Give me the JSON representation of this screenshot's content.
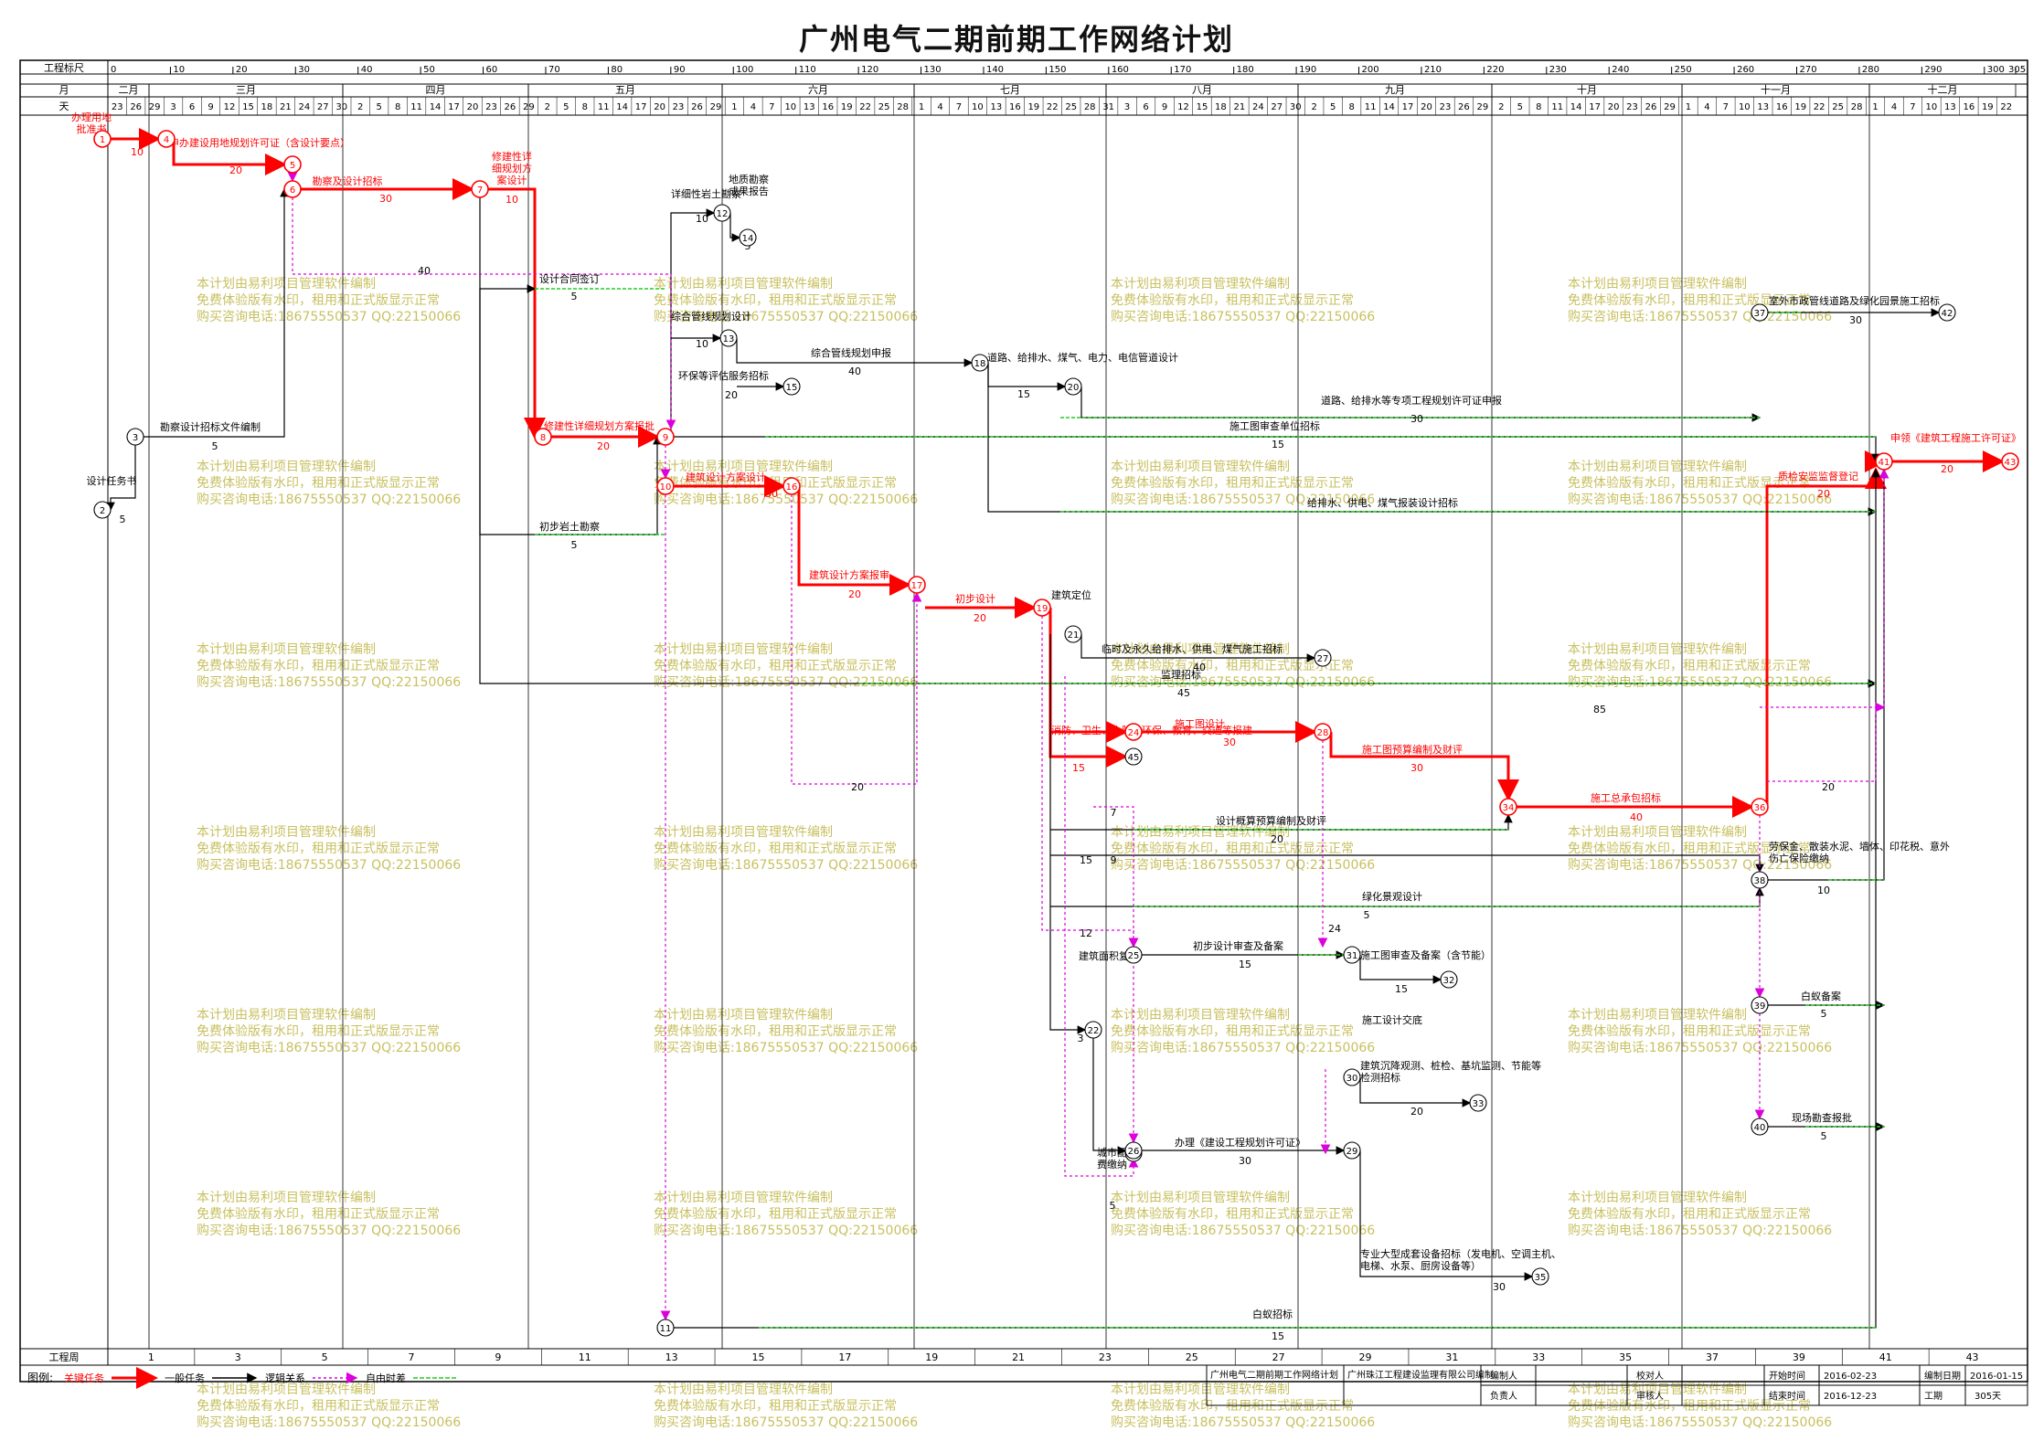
{
  "title": "广州电气二期前期工作网络计划",
  "header": {
    "row_labels": [
      "工程标尺",
      "月",
      "天"
    ],
    "scale_ticks": [
      "0",
      "10",
      "20",
      "30",
      "40",
      "50",
      "60",
      "70",
      "80",
      "90",
      "100",
      "110",
      "120",
      "130",
      "140",
      "150",
      "160",
      "170",
      "180",
      "190",
      "200",
      "210",
      "220",
      "230",
      "240",
      "250",
      "260",
      "270",
      "280",
      "290",
      "300",
      "305"
    ],
    "months": [
      "二月",
      "三月",
      "四月",
      "五月",
      "六月",
      "七月",
      "八月",
      "九月",
      "十月",
      "十一月",
      "十二月"
    ],
    "days": [
      "23",
      "26",
      "29",
      "3",
      "6",
      "9",
      "12",
      "15",
      "18",
      "21",
      "24",
      "27",
      "30",
      "2",
      "5",
      "8",
      "11",
      "14",
      "17",
      "20",
      "23",
      "26",
      "29",
      "2",
      "5",
      "8",
      "11",
      "14",
      "17",
      "20",
      "23",
      "26",
      "29",
      "1",
      "4",
      "7",
      "10",
      "13",
      "16",
      "19",
      "22",
      "25",
      "28",
      "1",
      "4",
      "7",
      "10",
      "13",
      "16",
      "19",
      "22",
      "25",
      "28",
      "31",
      "3",
      "6",
      "9",
      "12",
      "15",
      "18",
      "21",
      "24",
      "27",
      "30",
      "2",
      "5",
      "8",
      "11",
      "14",
      "17",
      "20",
      "23",
      "26",
      "29",
      "2",
      "5",
      "8",
      "11",
      "14",
      "17",
      "20",
      "23",
      "26",
      "29",
      "1",
      "4",
      "7",
      "10",
      "13",
      "16",
      "19",
      "22",
      "25",
      "28",
      "1",
      "4",
      "7",
      "10",
      "13",
      "16",
      "19",
      "22"
    ]
  },
  "footer": {
    "week_label": "工程周",
    "weeks": [
      "1",
      "3",
      "5",
      "7",
      "9",
      "11",
      "13",
      "15",
      "17",
      "19",
      "21",
      "23",
      "25",
      "27",
      "29",
      "31",
      "33",
      "35",
      "37",
      "39",
      "41",
      "43"
    ]
  },
  "legend": {
    "label": "图例:",
    "items": [
      "关键任务",
      "一般任务",
      "逻辑关系",
      "自由时差"
    ]
  },
  "info": {
    "project_name": "广州电气二期前期工作网络计划",
    "company": "广州珠江工程建设监理有限公司编制",
    "labels": [
      "编制人",
      "负责人",
      "校对人",
      "审核人",
      "开始时间",
      "结束时间",
      "编制日期",
      "工期"
    ],
    "start_date": "2016-02-23",
    "end_date": "2016-12-23",
    "compile_date": "2016-01-15",
    "duration": "305天"
  },
  "watermark": [
    "本计划由易利项目管理软件编制",
    "免费体验版有水印，租用和正式版显示正常",
    "购买咨询电话:18675550537 QQ:22150066"
  ],
  "tasks": [
    {
      "label": "办理用地批准书",
      "dur": "10",
      "critical": true
    },
    {
      "label": "申办建设用地规划许可证（含设计要点）",
      "dur": "20",
      "critical": true
    },
    {
      "label": "勘察及设计招标",
      "dur": "30",
      "critical": true
    },
    {
      "label": "修建性详细规划方案设计",
      "dur": "10",
      "critical": true
    },
    {
      "label": "修建性详细规划方案报批",
      "dur": "20",
      "critical": true
    },
    {
      "label": "建筑设计方案设计",
      "dur": "30",
      "critical": true
    },
    {
      "label": "建筑设计方案报审",
      "dur": "20",
      "critical": true
    },
    {
      "label": "初步设计",
      "dur": "20",
      "critical": true
    },
    {
      "label": "消防、卫生、人防、环保、教育、交通等报建",
      "dur": "15",
      "critical": true
    },
    {
      "label": "施工图设计",
      "dur": "30",
      "critical": true
    },
    {
      "label": "施工图预算编制及财评",
      "dur": "30",
      "critical": true
    },
    {
      "label": "施工总承包招标",
      "dur": "40",
      "critical": true
    },
    {
      "label": "质检安监监督登记",
      "dur": "20",
      "critical": true
    },
    {
      "label": "申领《建筑工程施工许可证》",
      "dur": "20",
      "critical": true
    },
    {
      "label": "勘察设计招标文件编制",
      "dur": "5",
      "critical": false
    },
    {
      "label": "设计任务书",
      "dur": "5",
      "critical": false
    },
    {
      "label": "设计合同签订",
      "dur": "5",
      "critical": false
    },
    {
      "label": "初步岩土勘察",
      "dur": "5",
      "critical": false
    },
    {
      "label": "详细性岩土勘察",
      "dur": "10",
      "critical": false
    },
    {
      "label": "地质勘察成果报告",
      "dur": "5",
      "critical": false
    },
    {
      "label": "综合管线规划设计",
      "dur": "10",
      "critical": false
    },
    {
      "label": "综合管线规划申报",
      "dur": "40",
      "critical": false
    },
    {
      "label": "环保等评估服务招标",
      "dur": "20",
      "critical": false
    },
    {
      "label": "道路、给排水、煤气、电力、电信管道设计",
      "dur": "15",
      "critical": false
    },
    {
      "label": "道路、给排水等专项工程规划许可证申报",
      "dur": "30",
      "critical": false
    },
    {
      "label": "施工图审查单位招标",
      "dur": "15",
      "critical": false
    },
    {
      "label": "给排水、供电、煤气报装设计招标",
      "dur": "",
      "critical": false
    },
    {
      "label": "临时及永久给排水、供电、煤气施工招标",
      "dur": "40",
      "critical": false
    },
    {
      "label": "监理招标",
      "dur": "45",
      "critical": false
    },
    {
      "label": "设计概算预算编制及财评",
      "dur": "20",
      "critical": false
    },
    {
      "label": "绿化景观设计",
      "dur": "5",
      "critical": false
    },
    {
      "label": "初步设计审查及备案",
      "dur": "15",
      "critical": false
    },
    {
      "label": "施工图审查及备案（含节能）",
      "dur": "15",
      "critical": false
    },
    {
      "label": "建筑沉降观测、桩检、基坑监测、节能等检测招标",
      "dur": "20",
      "critical": false
    },
    {
      "label": "办理《建设工程规划许可证》",
      "dur": "30",
      "critical": false
    },
    {
      "label": "专业大型成套设备招标（发电机、空调主机、电梯、水泵、厨房设备等）",
      "dur": "30",
      "critical": false
    },
    {
      "label": "室外市政管线道路及绿化园景施工招标",
      "dur": "30",
      "critical": false
    },
    {
      "label": "劳保金、散装水泥、墙体、印花税、意外伤亡保险缴纳",
      "dur": "10",
      "critical": false
    },
    {
      "label": "白蚁备案",
      "dur": "5",
      "critical": false
    },
    {
      "label": "现场勘查报批",
      "dur": "5",
      "critical": false
    },
    {
      "label": "白蚁招标",
      "dur": "15",
      "critical": false
    },
    {
      "label": "城市配套费缴纳",
      "dur": "5",
      "critical": false
    },
    {
      "label": "建筑面积复核",
      "dur": "3",
      "critical": false
    },
    {
      "label": "施工设计交底",
      "dur": "",
      "critical": false
    },
    {
      "label": "建筑定位",
      "dur": "",
      "critical": false
    }
  ],
  "colors": {
    "critical": "#ff0000",
    "normal": "#000000",
    "float": "#22cc22",
    "logic": "#dd00dd",
    "watermark": "#c8c060"
  }
}
